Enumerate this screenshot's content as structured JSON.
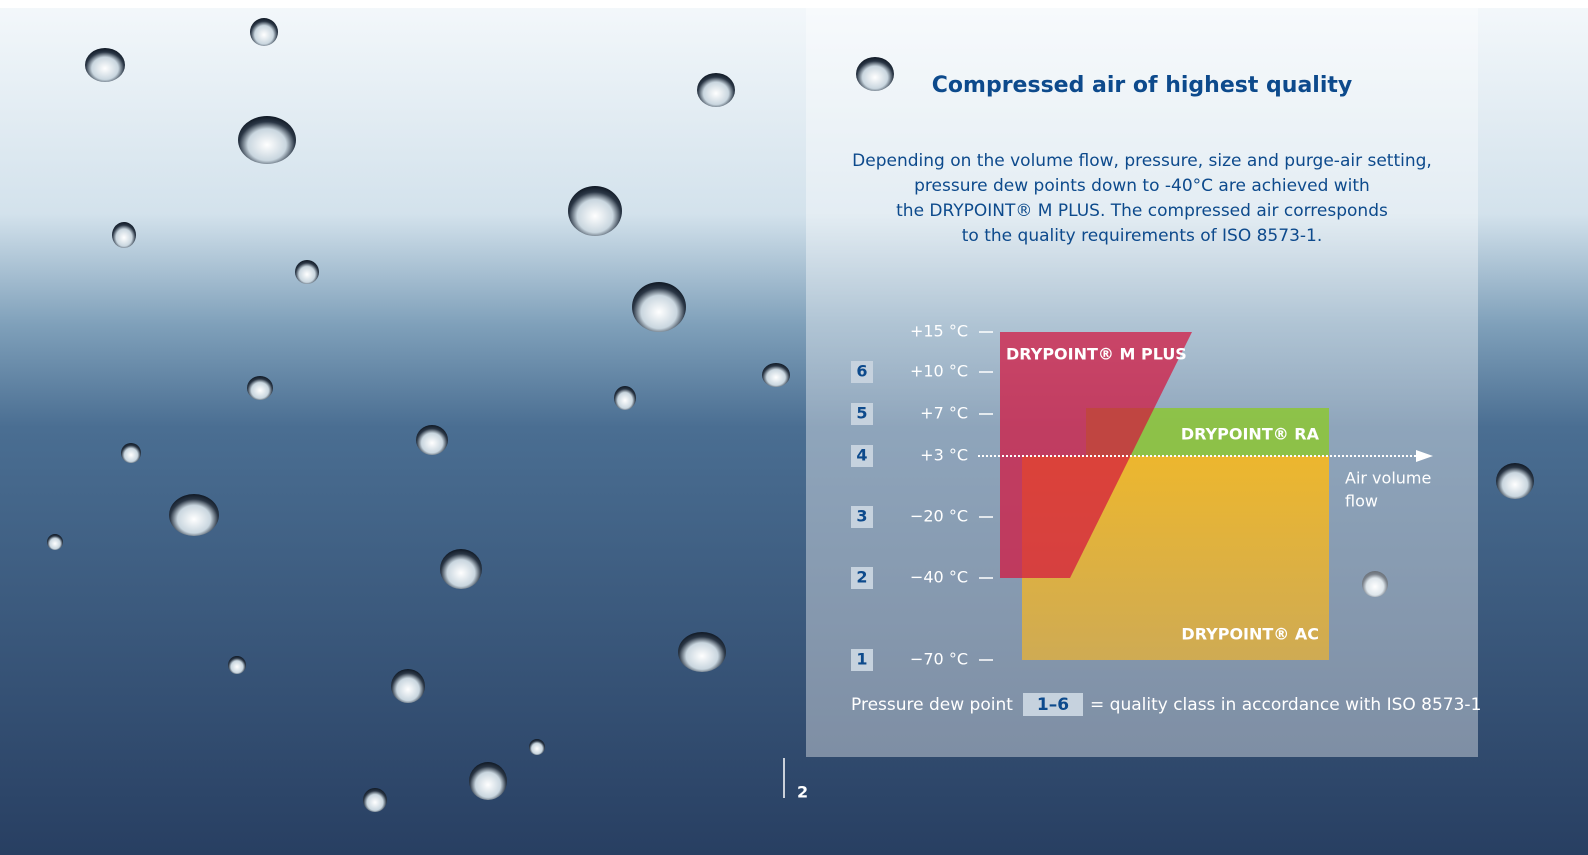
{
  "title": "Compressed air of highest quality",
  "intro": [
    "Depending on the volume flow, pressure, size and purge-air setting,",
    "pressure dew points down to -40°C are achieved with",
    "the DRYPOINT® M PLUS. The compressed air corresponds",
    "to the quality requirements of ISO 8573-1."
  ],
  "scale": [
    {
      "label": "+15 °C"
    },
    {
      "class": "6",
      "label": "+10 °C"
    },
    {
      "class": "5",
      "label": "+7 °C"
    },
    {
      "class": "4",
      "label": "+3 °C"
    },
    {
      "class": "3",
      "label": "−20 °C"
    },
    {
      "class": "2",
      "label": "−40 °C"
    },
    {
      "class": "1",
      "label": "−70 °C"
    }
  ],
  "products": [
    "DRYPOINT® M PLUS",
    "DRYPOINT® RA",
    "DRYPOINT® AC"
  ],
  "axis_label": [
    "Air volume",
    "flow"
  ],
  "legend": {
    "text": "Pressure dew point",
    "range": "1–6",
    "note": "= quality class in accordance with ISO 8573-1"
  },
  "page_number": "2"
}
